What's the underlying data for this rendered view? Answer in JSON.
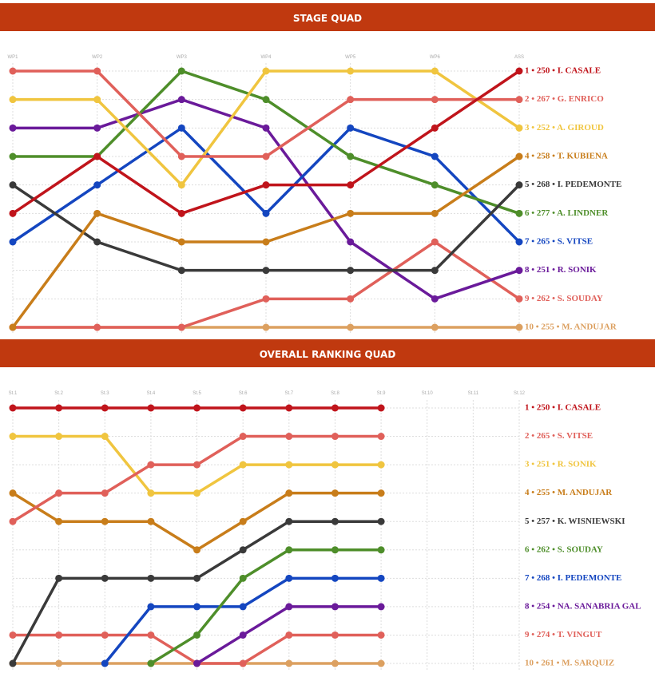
{
  "chart_data": [
    {
      "type": "line",
      "title": "STAGE QUAD",
      "categories": [
        "WP1",
        "WP2",
        "WP3",
        "WP4",
        "WP5",
        "WP6",
        "ASS"
      ],
      "ylim": [
        10,
        1
      ],
      "grid": true,
      "series": [
        {
          "name": "1 • 250 • I. CASALE",
          "color": "#c0141b",
          "values": [
            6,
            4,
            6,
            5,
            5,
            3,
            1
          ]
        },
        {
          "name": "2 • 267 • G. ENRICO",
          "color": "#e0605a",
          "values": [
            1,
            1,
            4,
            4,
            2,
            2,
            2
          ]
        },
        {
          "name": "3 • 252 • A. GIROUD",
          "color": "#f0c53f",
          "values": [
            2,
            2,
            5,
            1,
            1,
            1,
            3
          ]
        },
        {
          "name": "4 • 258 • T. KUBIENA",
          "color": "#c87d1a",
          "values": [
            10,
            6,
            7,
            7,
            6,
            6,
            4
          ]
        },
        {
          "name": "5 • 268 • I. PEDEMONTE",
          "color": "#3a3a3a",
          "values": [
            5,
            7,
            8,
            8,
            8,
            8,
            5
          ]
        },
        {
          "name": "6 • 277 • A. LINDNER",
          "color": "#4e8e2a",
          "values": [
            4,
            4,
            1,
            2,
            4,
            5,
            6
          ]
        },
        {
          "name": "7 • 265 • S. VITSE",
          "color": "#1446c0",
          "values": [
            7,
            5,
            3,
            6,
            3,
            4,
            7
          ]
        },
        {
          "name": "8 • 251 • R. SONIK",
          "color": "#6a1a9a",
          "values": [
            3,
            3,
            2,
            3,
            7,
            9,
            8
          ]
        },
        {
          "name": "9 • 262 • S. SOUDAY",
          "color": "#e0605a",
          "values": [
            10,
            10,
            10,
            9,
            9,
            7,
            9
          ]
        },
        {
          "name": "10 • 255 • M. ANDUJAR",
          "color": "#dca060",
          "values": [
            10,
            10,
            10,
            10,
            10,
            10,
            10
          ]
        }
      ]
    },
    {
      "type": "line",
      "title": "OVERALL RANKING QUAD",
      "categories": [
        "St.1",
        "St.2",
        "St.3",
        "St.4",
        "St.5",
        "St.6",
        "St.7",
        "St.8",
        "St.9",
        "St.10",
        "St.11",
        "St.12"
      ],
      "ylim": [
        10,
        1
      ],
      "grid": true,
      "series": [
        {
          "name": "1 • 250 • I. CASALE",
          "color": "#c0141b",
          "values": [
            1,
            1,
            1,
            1,
            1,
            1,
            1,
            1,
            1,
            null,
            null,
            null
          ]
        },
        {
          "name": "2 • 265 • S. VITSE",
          "color": "#e0605a",
          "values": [
            5,
            4,
            4,
            3,
            3,
            2,
            2,
            2,
            2,
            null,
            null,
            null
          ]
        },
        {
          "name": "3 • 251 • R. SONIK",
          "color": "#f0c53f",
          "values": [
            2,
            2,
            2,
            4,
            4,
            3,
            3,
            3,
            3,
            null,
            null,
            null
          ]
        },
        {
          "name": "4 • 255 • M. ANDUJAR",
          "color": "#c87d1a",
          "values": [
            4,
            5,
            5,
            5,
            6,
            5,
            4,
            4,
            4,
            null,
            null,
            null
          ]
        },
        {
          "name": "5 • 257 • K. WISNIEWSKI",
          "color": "#3a3a3a",
          "values": [
            10,
            7,
            7,
            7,
            7,
            6,
            5,
            5,
            5,
            null,
            null,
            null
          ]
        },
        {
          "name": "6 • 262 • S. SOUDAY",
          "color": "#4e8e2a",
          "values": [
            null,
            null,
            null,
            10,
            9,
            7,
            6,
            6,
            6,
            null,
            null,
            null
          ]
        },
        {
          "name": "7 • 268 • I. PEDEMONTE",
          "color": "#1446c0",
          "values": [
            null,
            null,
            10,
            8,
            8,
            8,
            7,
            7,
            7,
            null,
            null,
            null
          ]
        },
        {
          "name": "8 • 254 • NA. SANABRIA GAL",
          "color": "#6a1a9a",
          "values": [
            null,
            null,
            null,
            null,
            10,
            9,
            8,
            8,
            8,
            null,
            null,
            null
          ]
        },
        {
          "name": "9 • 274 • T. VINGUT",
          "color": "#e0605a",
          "values": [
            9,
            9,
            9,
            9,
            10,
            10,
            9,
            9,
            9,
            null,
            null,
            null
          ]
        },
        {
          "name": "10 • 261 • M. SARQUIZ",
          "color": "#dca060",
          "values": [
            10,
            10,
            10,
            10,
            10,
            10,
            10,
            10,
            10,
            null,
            null,
            null
          ]
        }
      ]
    }
  ]
}
